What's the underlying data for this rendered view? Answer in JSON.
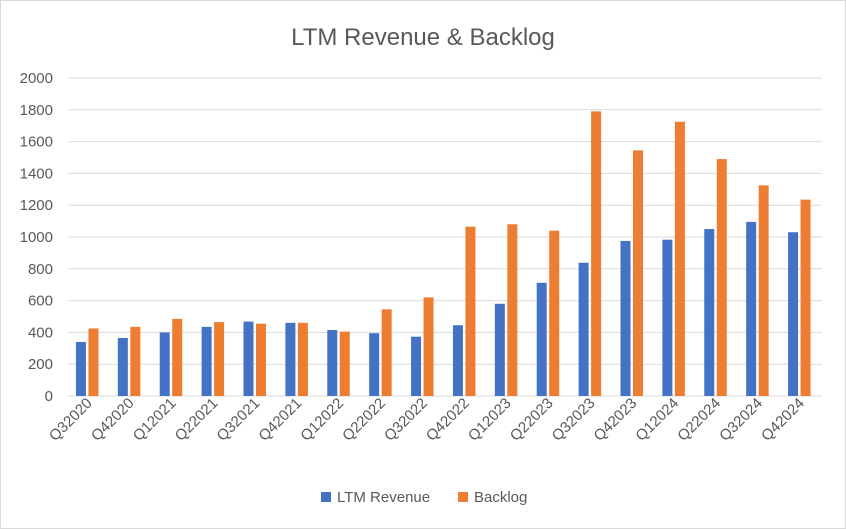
{
  "chart_data": {
    "type": "bar",
    "title": "LTM Revenue & Backlog",
    "xlabel": "",
    "ylabel": "",
    "ylim": [
      0,
      2000
    ],
    "yticks": [
      0,
      200,
      400,
      600,
      800,
      1000,
      1200,
      1400,
      1600,
      1800,
      2000
    ],
    "grid": true,
    "legend_position": "bottom",
    "categories": [
      "Q32020",
      "Q42020",
      "Q12021",
      "Q22021",
      "Q32021",
      "Q42021",
      "Q12022",
      "Q22022",
      "Q32022",
      "Q42022",
      "Q12023",
      "Q22023",
      "Q32023",
      "Q42023",
      "Q12024",
      "Q22024",
      "Q32024",
      "Q42024"
    ],
    "series": [
      {
        "name": "LTM Revenue",
        "color": "#4472c4",
        "values": [
          340,
          365,
          400,
          435,
          468,
          460,
          415,
          395,
          373,
          445,
          580,
          712,
          838,
          975,
          983,
          1050,
          1095,
          1030
        ]
      },
      {
        "name": "Backlog",
        "color": "#ed7d31",
        "values": [
          425,
          435,
          485,
          465,
          455,
          460,
          405,
          545,
          620,
          1065,
          1080,
          1040,
          1790,
          1545,
          1725,
          1490,
          1325,
          1235
        ]
      }
    ]
  }
}
